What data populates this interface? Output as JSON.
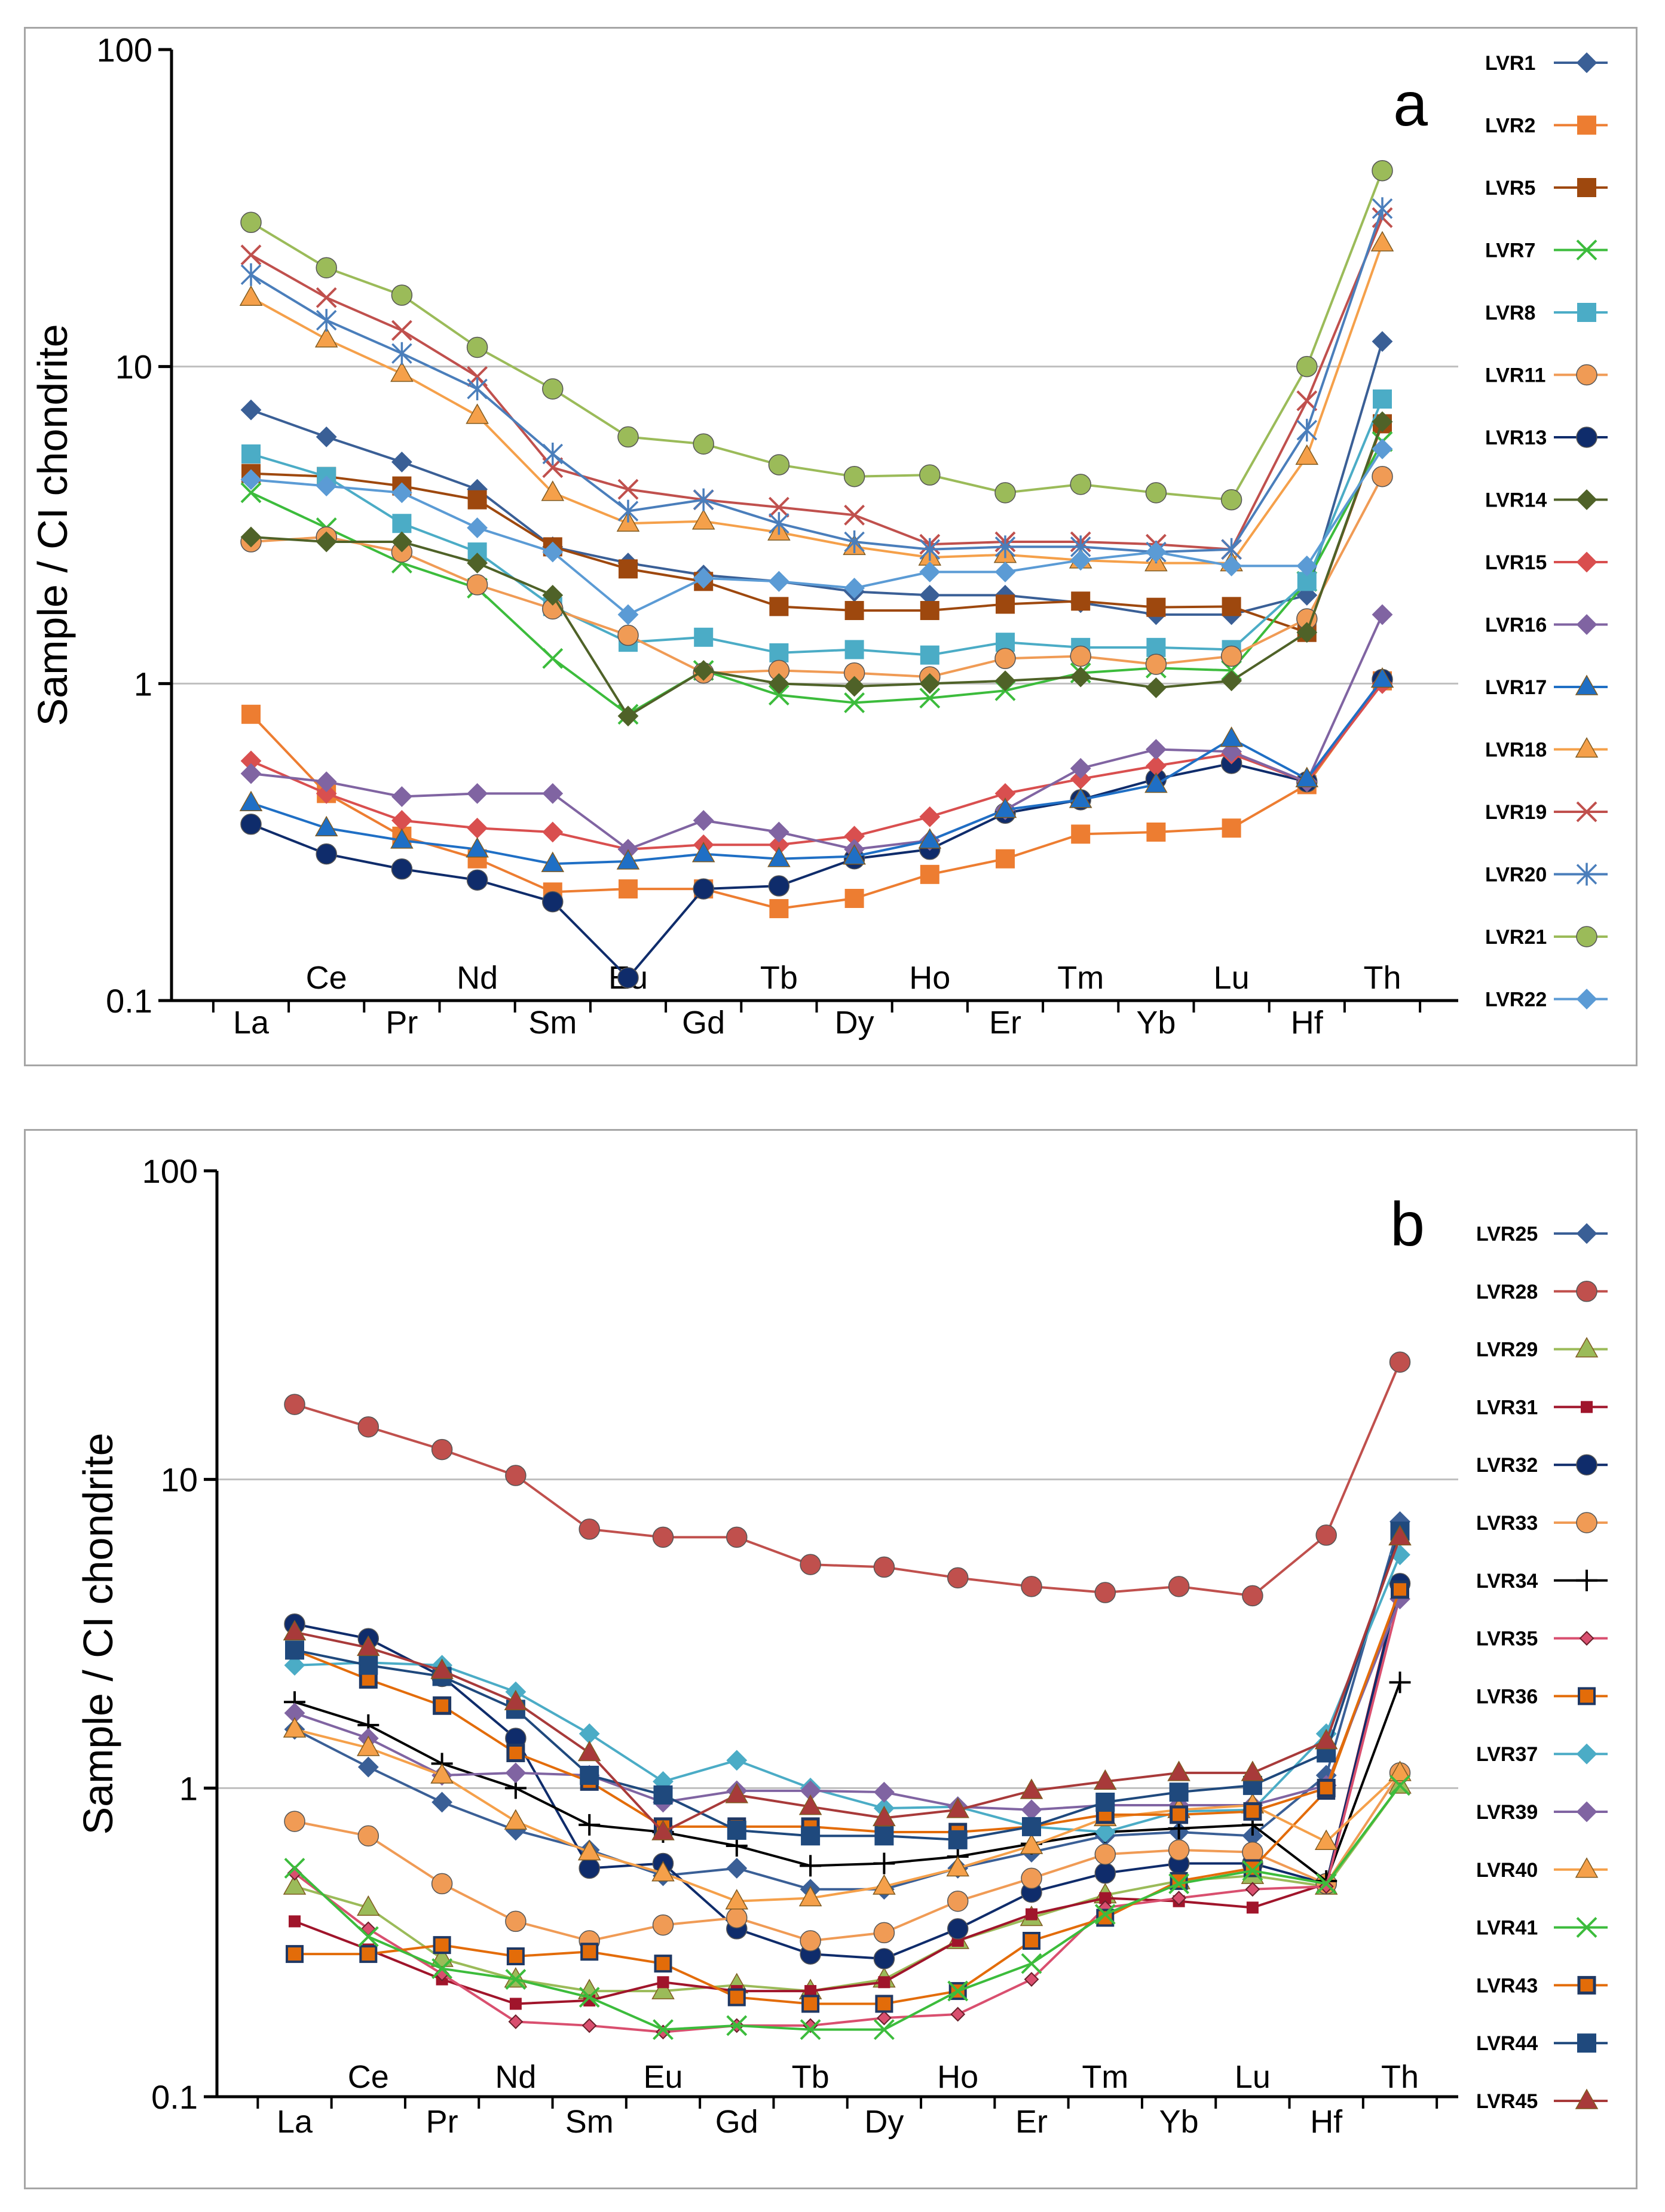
{
  "elements_bottom": [
    "La",
    "Pr",
    "Sm",
    "Gd",
    "Dy",
    "Er",
    "Yb",
    "Hf"
  ],
  "elements_top_a": [
    "Ce",
    "Nd",
    "Eu",
    "Tb",
    "Ho",
    "Tm",
    "Lu",
    "Th"
  ],
  "elements_top_b": [
    "Ce",
    "Nd",
    "Eu",
    "Tb",
    "Ho",
    "Tm",
    "Lu",
    "Th"
  ],
  "chart_data": [
    {
      "type": "line",
      "panel_letter": "a",
      "ylabel": "Sample / CI chondrite",
      "yscale": "log",
      "ylim": [
        0.1,
        100
      ],
      "yticks": [
        "0.1",
        "1",
        "10",
        "100"
      ],
      "gridlines": [
        1,
        10
      ],
      "legend": "right",
      "categories": [
        "La",
        "Ce",
        "Pr",
        "Nd",
        "Sm",
        "Eu",
        "Gd",
        "Tb",
        "Dy",
        "Ho",
        "Er",
        "Tm",
        "Yb",
        "Lu",
        "Hf",
        "Th"
      ],
      "series": [
        {
          "name": "LVR1",
          "color": "#3a5f96",
          "marker": "diamond",
          "values": [
            7.3,
            6.0,
            5.0,
            4.1,
            2.7,
            2.4,
            2.2,
            2.1,
            1.95,
            1.9,
            1.9,
            1.8,
            1.65,
            1.65,
            1.9,
            12
          ]
        },
        {
          "name": "LVR2",
          "color": "#ed7d31",
          "marker": "square",
          "values": [
            0.8,
            0.45,
            0.33,
            0.28,
            0.22,
            0.225,
            0.225,
            0.195,
            0.21,
            0.25,
            0.28,
            0.335,
            0.34,
            0.35,
            0.48,
            1.02
          ]
        },
        {
          "name": "LVR5",
          "color": "#9e480e",
          "marker": "square",
          "values": [
            4.6,
            4.5,
            4.2,
            3.8,
            2.7,
            2.3,
            2.1,
            1.75,
            1.7,
            1.7,
            1.78,
            1.82,
            1.74,
            1.75,
            1.45,
            6.6
          ]
        },
        {
          "name": "LVR7",
          "color": "#3cbc3c",
          "marker": "x",
          "values": [
            4.0,
            3.1,
            2.4,
            2.0,
            1.2,
            0.8,
            1.1,
            0.92,
            0.87,
            0.9,
            0.95,
            1.08,
            1.12,
            1.1,
            2.1,
            5.8
          ]
        },
        {
          "name": "LVR8",
          "color": "#4bacc6",
          "marker": "square",
          "values": [
            5.3,
            4.5,
            3.2,
            2.6,
            1.75,
            1.35,
            1.4,
            1.25,
            1.28,
            1.23,
            1.35,
            1.3,
            1.3,
            1.28,
            2.1,
            7.9
          ]
        },
        {
          "name": "LVR11",
          "color": "#f09b55",
          "marker": "circle",
          "values": [
            2.8,
            2.9,
            2.6,
            2.05,
            1.72,
            1.42,
            1.08,
            1.1,
            1.08,
            1.05,
            1.2,
            1.22,
            1.15,
            1.22,
            1.6,
            4.5
          ]
        },
        {
          "name": "LVR13",
          "color": "#0f2c6b",
          "marker": "circle",
          "values": [
            0.36,
            0.29,
            0.26,
            0.24,
            0.205,
            0.118,
            0.225,
            0.23,
            0.28,
            0.3,
            0.39,
            0.43,
            0.5,
            0.56,
            0.49,
            1.03
          ]
        },
        {
          "name": "LVR14",
          "color": "#4f6228",
          "marker": "diamond",
          "values": [
            2.9,
            2.8,
            2.8,
            2.4,
            1.9,
            0.79,
            1.1,
            1.0,
            0.98,
            1.0,
            1.02,
            1.05,
            0.97,
            1.02,
            1.45,
            6.7
          ]
        },
        {
          "name": "LVR15",
          "color": "#d94f4f",
          "marker": "diamond",
          "values": [
            0.57,
            0.45,
            0.37,
            0.35,
            0.34,
            0.3,
            0.31,
            0.31,
            0.33,
            0.38,
            0.45,
            0.5,
            0.55,
            0.6,
            0.49,
            1.0
          ]
        },
        {
          "name": "LVR16",
          "color": "#8064a2",
          "marker": "diamond",
          "values": [
            0.52,
            0.49,
            0.44,
            0.45,
            0.45,
            0.3,
            0.37,
            0.34,
            0.3,
            0.32,
            0.4,
            0.54,
            0.62,
            0.61,
            0.49,
            1.65
          ]
        },
        {
          "name": "LVR17",
          "color": "#1f6fc5",
          "marker": "triangle",
          "values": [
            0.42,
            0.35,
            0.32,
            0.3,
            0.27,
            0.275,
            0.29,
            0.28,
            0.285,
            0.32,
            0.4,
            0.43,
            0.48,
            0.67,
            0.5,
            1.03
          ]
        },
        {
          "name": "LVR18",
          "color": "#f5a04a",
          "marker": "triangle",
          "values": [
            16.5,
            12.2,
            9.5,
            7.0,
            4.0,
            3.2,
            3.25,
            3.0,
            2.7,
            2.5,
            2.55,
            2.45,
            2.4,
            2.4,
            5.2,
            24.5
          ]
        },
        {
          "name": "LVR19",
          "color": "#c0504d",
          "marker": "x",
          "values": [
            22.5,
            16.5,
            13.0,
            9.3,
            4.8,
            4.1,
            3.8,
            3.6,
            3.4,
            2.75,
            2.8,
            2.8,
            2.75,
            2.65,
            7.8,
            29.5
          ]
        },
        {
          "name": "LVR20",
          "color": "#4a7ebb",
          "marker": "asterisk",
          "values": [
            19.5,
            14.0,
            11.0,
            8.5,
            5.3,
            3.5,
            3.8,
            3.2,
            2.8,
            2.65,
            2.7,
            2.7,
            2.6,
            2.65,
            6.3,
            31.5
          ]
        },
        {
          "name": "LVR21",
          "color": "#9bbb59",
          "marker": "circle",
          "values": [
            28.5,
            20.5,
            16.8,
            11.5,
            8.5,
            6.0,
            5.7,
            4.9,
            4.5,
            4.55,
            4.0,
            4.25,
            4.0,
            3.8,
            10.0,
            41.5
          ]
        },
        {
          "name": "LVR22",
          "color": "#5b9bd5",
          "marker": "diamond",
          "values": [
            4.4,
            4.2,
            4.0,
            3.1,
            2.6,
            1.65,
            2.15,
            2.1,
            2.0,
            2.25,
            2.25,
            2.45,
            2.6,
            2.35,
            2.35,
            5.5
          ]
        }
      ]
    },
    {
      "type": "line",
      "panel_letter": "b",
      "ylabel": "Sample / CI chondrite",
      "yscale": "log",
      "ylim": [
        0.1,
        100
      ],
      "yticks": [
        "0.1",
        "1",
        "10",
        "100"
      ],
      "gridlines": [
        1,
        10
      ],
      "legend": "right",
      "categories": [
        "La",
        "Ce",
        "Pr",
        "Nd",
        "Sm",
        "Eu",
        "Gd",
        "Tb",
        "Dy",
        "Ho",
        "Er",
        "Tm",
        "Yb",
        "Lu",
        "Hf",
        "Th"
      ],
      "series": [
        {
          "name": "LVR25",
          "color": "#3a5f96",
          "marker": "diamond",
          "values": [
            1.55,
            1.17,
            0.9,
            0.73,
            0.63,
            0.52,
            0.55,
            0.47,
            0.47,
            0.55,
            0.62,
            0.7,
            0.72,
            0.7,
            1.1,
            7.3
          ]
        },
        {
          "name": "LVR28",
          "color": "#c0504d",
          "marker": "circle",
          "values": [
            17.5,
            14.8,
            12.5,
            10.3,
            6.9,
            6.5,
            6.5,
            5.3,
            5.2,
            4.8,
            4.5,
            4.3,
            4.5,
            4.2,
            6.6,
            24.0
          ]
        },
        {
          "name": "LVR29",
          "color": "#9bbb59",
          "marker": "triangle",
          "values": [
            0.48,
            0.41,
            0.28,
            0.24,
            0.22,
            0.22,
            0.23,
            0.22,
            0.24,
            0.32,
            0.38,
            0.45,
            0.5,
            0.52,
            0.48,
            1.02
          ]
        },
        {
          "name": "LVR31",
          "color": "#a0152b",
          "marker": "square-small",
          "values": [
            0.37,
            0.3,
            0.24,
            0.2,
            0.205,
            0.235,
            0.22,
            0.22,
            0.235,
            0.32,
            0.39,
            0.44,
            0.43,
            0.41,
            0.49,
            4.7
          ]
        },
        {
          "name": "LVR32",
          "color": "#0f2c6b",
          "marker": "circle",
          "values": [
            3.4,
            3.05,
            2.3,
            1.45,
            0.55,
            0.57,
            0.35,
            0.29,
            0.28,
            0.35,
            0.46,
            0.53,
            0.57,
            0.57,
            0.49,
            4.6
          ]
        },
        {
          "name": "LVR33",
          "color": "#f09b55",
          "marker": "circle",
          "values": [
            0.78,
            0.7,
            0.49,
            0.37,
            0.32,
            0.36,
            0.38,
            0.32,
            0.34,
            0.43,
            0.51,
            0.61,
            0.63,
            0.62,
            0.49,
            1.12
          ]
        },
        {
          "name": "LVR34",
          "color": "#000000",
          "marker": "plus",
          "values": [
            1.9,
            1.6,
            1.2,
            1.0,
            0.76,
            0.72,
            0.65,
            0.56,
            0.57,
            0.6,
            0.66,
            0.72,
            0.74,
            0.76,
            0.5,
            2.2
          ]
        },
        {
          "name": "LVR35",
          "color": "#d94f6f",
          "marker": "diamond-small",
          "values": [
            0.53,
            0.35,
            0.25,
            0.175,
            0.17,
            0.162,
            0.17,
            0.17,
            0.18,
            0.185,
            0.24,
            0.41,
            0.44,
            0.47,
            0.48,
            4.2
          ]
        },
        {
          "name": "LVR36",
          "color": "#e36c09",
          "marker": "square-outline",
          "values": [
            0.29,
            0.29,
            0.31,
            0.285,
            0.295,
            0.27,
            0.21,
            0.2,
            0.2,
            0.22,
            0.32,
            0.38,
            0.5,
            0.55,
            0.98,
            4.4
          ]
        },
        {
          "name": "LVR37",
          "color": "#4bacc6",
          "marker": "diamond",
          "values": [
            2.5,
            2.55,
            2.5,
            2.05,
            1.5,
            1.05,
            1.23,
            1.0,
            0.86,
            0.87,
            0.75,
            0.72,
            0.84,
            0.85,
            1.5,
            5.7
          ]
        },
        {
          "name": "LVR39",
          "color": "#8064a2",
          "marker": "diamond",
          "values": [
            1.75,
            1.45,
            1.1,
            1.12,
            1.1,
            0.9,
            0.98,
            0.98,
            0.97,
            0.87,
            0.85,
            0.88,
            0.88,
            0.88,
            1.02,
            4.1
          ]
        },
        {
          "name": "LVR40",
          "color": "#f5a04a",
          "marker": "triangle",
          "values": [
            1.55,
            1.35,
            1.1,
            0.78,
            0.62,
            0.53,
            0.43,
            0.44,
            0.48,
            0.55,
            0.65,
            0.8,
            0.85,
            0.88,
            0.67,
            1.12
          ]
        },
        {
          "name": "LVR41",
          "color": "#3cbc3c",
          "marker": "x",
          "values": [
            0.55,
            0.33,
            0.26,
            0.24,
            0.21,
            0.165,
            0.17,
            0.165,
            0.165,
            0.22,
            0.27,
            0.39,
            0.49,
            0.54,
            0.49,
            1.02
          ]
        },
        {
          "name": "LVR43",
          "color": "#e36c09",
          "marker": "square-navy",
          "values": [
            2.8,
            2.25,
            1.85,
            1.3,
            1.05,
            0.75,
            0.75,
            0.75,
            0.72,
            0.72,
            0.75,
            0.82,
            0.82,
            0.84,
            1.0,
            4.4
          ]
        },
        {
          "name": "LVR44",
          "color": "#1f497d",
          "marker": "square",
          "values": [
            2.8,
            2.5,
            2.3,
            1.8,
            1.1,
            0.95,
            0.73,
            0.7,
            0.7,
            0.68,
            0.75,
            0.9,
            0.97,
            1.02,
            1.3,
            6.8
          ]
        },
        {
          "name": "LVR45",
          "color": "#a83a3a",
          "marker": "triangle",
          "values": [
            3.2,
            2.85,
            2.4,
            1.9,
            1.3,
            0.72,
            0.95,
            0.87,
            0.8,
            0.85,
            0.98,
            1.05,
            1.12,
            1.12,
            1.42,
            6.5
          ]
        }
      ]
    }
  ]
}
